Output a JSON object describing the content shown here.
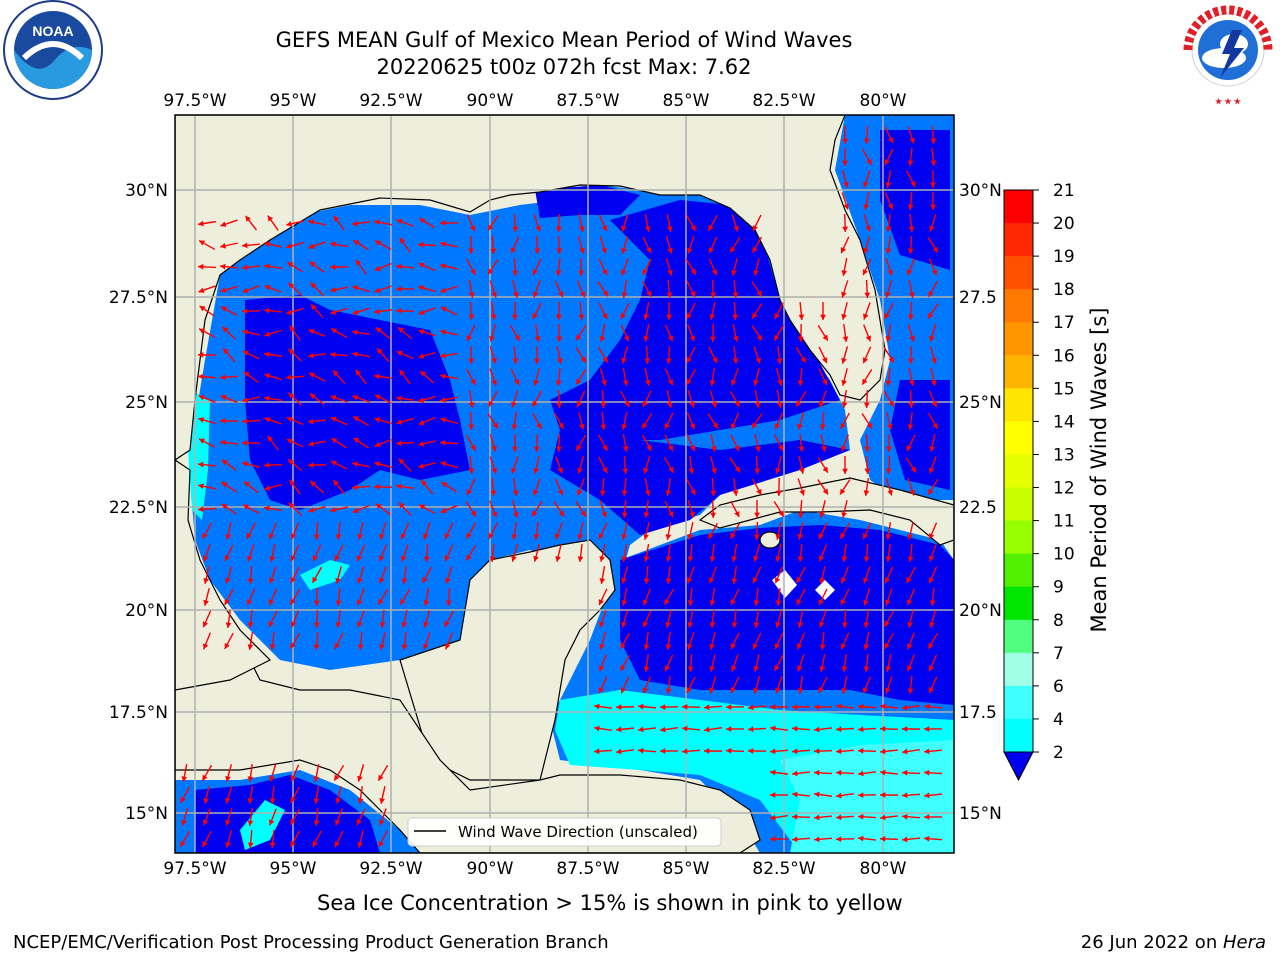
{
  "title_line1": "GEFS MEAN Gulf of Mexico Mean Period of Wind Waves",
  "title_line2": "20220625 t00z 072h fcst   Max: 7.62",
  "logos": {
    "left": {
      "icon": "noaa-logo",
      "text": "NOAA"
    },
    "right": {
      "icon": "nws-logo",
      "text": "NATIONAL WEATHER SERVICE"
    }
  },
  "map": {
    "lon_ticks_top": [
      "97.5°W",
      "95°W",
      "92.5°W",
      "90°W",
      "87.5°W",
      "85°W",
      "82.5°W",
      "80°W"
    ],
    "lon_ticks_bottom": [
      "97.5°W",
      "95°W",
      "92.5°W",
      "90°W",
      "87.5°W",
      "85°W",
      "82.5°W",
      "80°W"
    ],
    "lat_ticks_left": [
      "30°N",
      "27.5°N",
      "25°N",
      "22.5°N",
      "20°N",
      "17.5°N",
      "15°N"
    ],
    "lat_ticks_right": [
      "30°N",
      "27.5",
      "25°N",
      "22.5",
      "20°N",
      "17.5",
      "15°N"
    ],
    "legend_label": "Wind Wave Direction (unscaled)",
    "colors": {
      "land": "#eeeedd",
      "level_2_4": "#0078ff",
      "level_0_2": "#0000f0",
      "level_4_6": "#00ffff",
      "level_6_8": "#40ffff",
      "arrow": "#ff0000"
    }
  },
  "colorbar": {
    "label": "Mean Period of Wind Waves [s]",
    "ticks": [
      "21",
      "20",
      "19",
      "18",
      "17",
      "16",
      "15",
      "14",
      "13",
      "12",
      "11",
      "10",
      "9",
      "8",
      "7",
      "6",
      "4",
      "2"
    ],
    "colors": [
      "#ff0000",
      "#ff2800",
      "#ff5000",
      "#ff7800",
      "#ff9600",
      "#ffb400",
      "#ffe600",
      "#ffff00",
      "#e6ff00",
      "#c8ff00",
      "#96ff00",
      "#50f000",
      "#00e600",
      "#50ff80",
      "#a0ffe6",
      "#40ffff",
      "#00ffff",
      "#00c8ff",
      "#0078ff",
      "#0000f0"
    ],
    "extend_color": "#0000f0"
  },
  "subtitle": "Sea Ice Concentration > 15% is shown in pink to yellow",
  "footer_left": "NCEP/EMC/Verification Post Processing Product Generation Branch",
  "footer_right_date": "26 Jun 2022 on ",
  "footer_right_host": "Hera"
}
